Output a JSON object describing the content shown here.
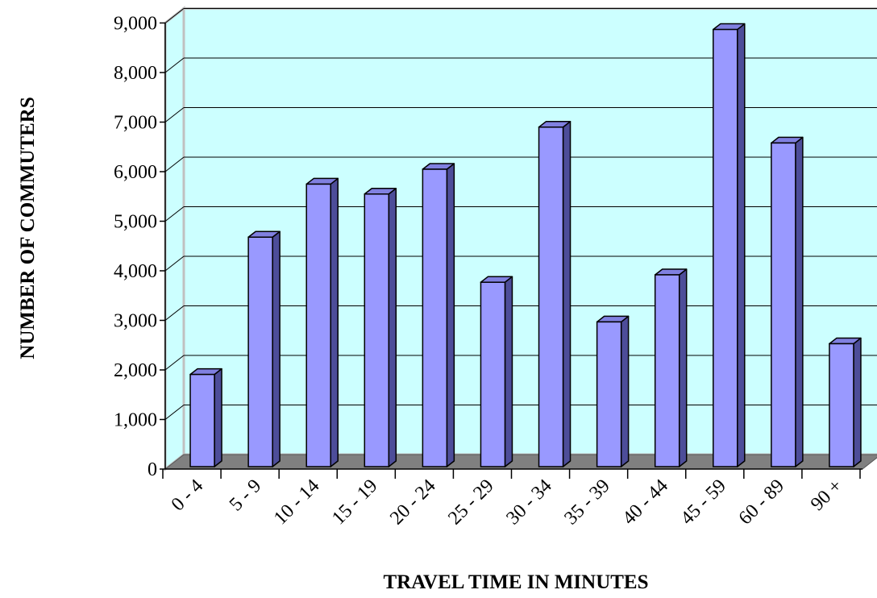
{
  "chart_data": {
    "type": "bar",
    "title": "",
    "xlabel": "TRAVEL TIME IN MINUTES",
    "ylabel": "NUMBER OF COMMUTERS",
    "categories": [
      "0 - 4",
      "5 - 9",
      "10 - 14",
      "15 - 19",
      "20 - 24",
      "25 - 29",
      "30 - 34",
      "35 - 39",
      "40 - 44",
      "45 - 59",
      "60 - 89",
      "90 +"
    ],
    "values": [
      1860,
      4630,
      5700,
      5500,
      6000,
      3720,
      6850,
      2920,
      3870,
      8820,
      6530,
      2480
    ],
    "ylim": [
      0,
      9000
    ],
    "yticks": [
      0,
      1000,
      2000,
      3000,
      4000,
      5000,
      6000,
      7000,
      8000,
      9000
    ],
    "ytick_labels": [
      "0",
      "1,000",
      "2,000",
      "3,000",
      "4,000",
      "5,000",
      "6,000",
      "7,000",
      "8,000",
      "9,000"
    ],
    "grid": true,
    "style": "3d-column",
    "colors": {
      "bar_front": "#9999ff",
      "bar_top": "#8080e0",
      "bar_side": "#4d4d99",
      "wall": "#ccffff",
      "wall_side": "#c0c0c0",
      "floor": "#808080"
    }
  }
}
